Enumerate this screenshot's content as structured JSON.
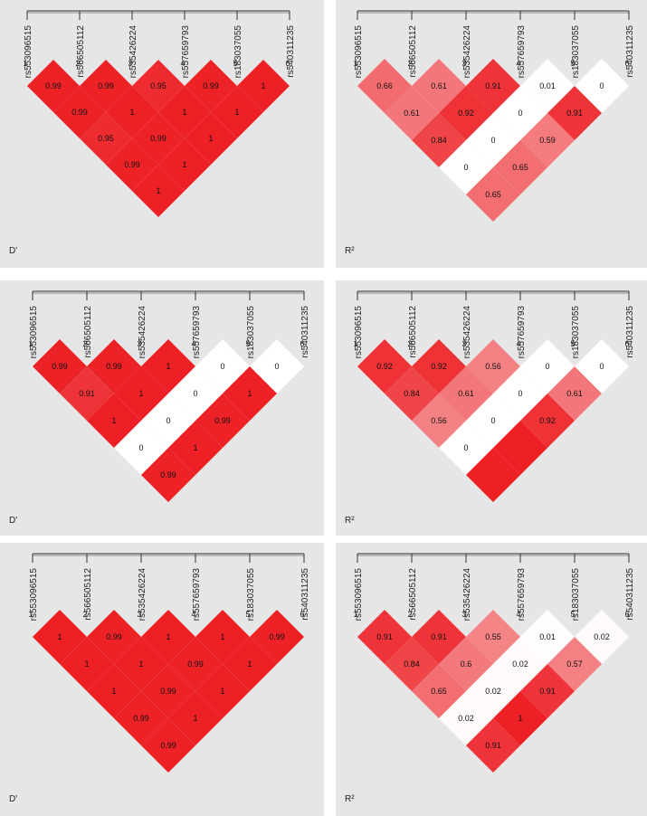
{
  "snps": [
    "rs553096515",
    "rs566505112",
    "rs535426224",
    "rs557659793",
    "rs183037055",
    "rs540311235"
  ],
  "positions": [
    "1",
    "2",
    "3",
    "4",
    "5",
    "6"
  ],
  "panels": [
    {
      "metric": "D'",
      "values": [
        [
          0.99,
          0.99,
          0.95,
          0.99,
          1
        ],
        [
          0.99,
          1,
          1,
          1
        ],
        [
          0.95,
          0.99,
          1
        ],
        [
          0.99,
          1
        ],
        [
          1
        ]
      ],
      "labels": [
        [
          "0.99",
          "0.99",
          "0.95",
          "0.99",
          "1"
        ],
        [
          "0.99",
          "1",
          "1",
          "1"
        ],
        [
          "0.95",
          "0.99",
          "1"
        ],
        [
          "0.99",
          "1"
        ],
        [
          "1"
        ]
      ]
    },
    {
      "metric": "R²",
      "values": [
        [
          0.66,
          0.61,
          0.91,
          0.01,
          0
        ],
        [
          0.61,
          0.92,
          0,
          0.91
        ],
        [
          0.84,
          0,
          0.59
        ],
        [
          0,
          0.65
        ],
        [
          0.65
        ]
      ],
      "labels": [
        [
          "0.66",
          "0.61",
          "0.91",
          "0.01",
          "0"
        ],
        [
          "0.61",
          "0.92",
          "0",
          "0.91"
        ],
        [
          "0.84",
          "0",
          "0.59"
        ],
        [
          "0",
          "0.65"
        ],
        [
          "0.65"
        ]
      ]
    },
    {
      "metric": "D'",
      "values": [
        [
          0.99,
          0.99,
          1,
          0,
          0
        ],
        [
          0.91,
          1,
          0,
          1
        ],
        [
          1,
          0,
          0.99
        ],
        [
          0,
          1
        ],
        [
          0.99
        ]
      ],
      "labels": [
        [
          "0.99",
          "0.99",
          "1",
          "0",
          "0"
        ],
        [
          "0.91",
          "1",
          "0",
          "1"
        ],
        [
          "1",
          "0",
          "0.99"
        ],
        [
          "0",
          "1"
        ],
        [
          "0.99"
        ]
      ]
    },
    {
      "metric": "R²",
      "values": [
        [
          0.92,
          0.92,
          0.56,
          0,
          0
        ],
        [
          0.84,
          0.61,
          0,
          0.61
        ],
        [
          0.56,
          0,
          0.92
        ],
        [
          0,
          1
        ],
        [
          1
        ]
      ],
      "labels": [
        [
          "0.92",
          "0.92",
          "0.56",
          "0",
          "0"
        ],
        [
          "0.84",
          "0.61",
          "0",
          "0.61"
        ],
        [
          "0.56",
          "0",
          "0.92"
        ],
        [
          "0",
          ""
        ],
        [
          ""
        ]
      ]
    },
    {
      "metric": "D'",
      "values": [
        [
          1,
          0.99,
          1,
          1,
          0.99
        ],
        [
          1,
          1,
          0.99,
          1
        ],
        [
          1,
          0.99,
          1
        ],
        [
          0.99,
          1
        ],
        [
          0.99
        ]
      ],
      "labels": [
        [
          "1",
          "0.99",
          "1",
          "1",
          "0.99"
        ],
        [
          "1",
          "1",
          "0.99",
          "1"
        ],
        [
          "1",
          "0.99",
          "1"
        ],
        [
          "0.99",
          "1"
        ],
        [
          "0.99"
        ]
      ]
    },
    {
      "metric": "R²",
      "values": [
        [
          0.91,
          0.91,
          0.55,
          0.01,
          0.02
        ],
        [
          0.84,
          0.6,
          0.02,
          0.57
        ],
        [
          0.65,
          0.02,
          0.91
        ],
        [
          0.02,
          1
        ],
        [
          0.91
        ]
      ],
      "labels": [
        [
          "0.91",
          "0.91",
          "0.55",
          "0.01",
          "0.02"
        ],
        [
          "0.84",
          "0.6",
          "0.02",
          "0.57"
        ],
        [
          "0.65",
          "0.02",
          "0.91"
        ],
        [
          "0.02",
          "1"
        ],
        [
          "0.91"
        ]
      ]
    }
  ],
  "colors": {
    "high": "#ec2025",
    "zero": "#ffffff",
    "panel_bg": "#e6e6e6",
    "axis": "#333333"
  }
}
